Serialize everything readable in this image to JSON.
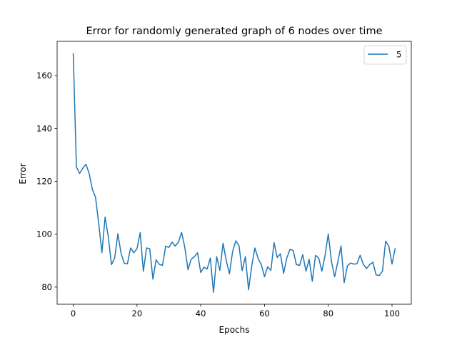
{
  "chart_data": {
    "type": "line",
    "title": "Error for randomly generated graph of 6 nodes over time",
    "xlabel": "Epochs",
    "ylabel": "Error",
    "xlim": [
      -5.05,
      106.05
    ],
    "ylim": [
      73.5,
      173.0
    ],
    "xticks": [
      0,
      20,
      40,
      60,
      80,
      100
    ],
    "yticks": [
      80,
      100,
      120,
      140,
      160
    ],
    "grid": false,
    "legend": {
      "position": "top-right",
      "entries": [
        "5"
      ]
    },
    "series": [
      {
        "name": "5",
        "color": "#1f77b4",
        "x": [
          0,
          1,
          2,
          3,
          4,
          5,
          6,
          7,
          8,
          9,
          10,
          11,
          12,
          13,
          14,
          15,
          16,
          17,
          18,
          19,
          20,
          21,
          22,
          23,
          24,
          25,
          26,
          27,
          28,
          29,
          30,
          31,
          32,
          33,
          34,
          35,
          36,
          37,
          38,
          39,
          40,
          41,
          42,
          43,
          44,
          45,
          46,
          47,
          48,
          49,
          50,
          51,
          52,
          53,
          54,
          55,
          56,
          57,
          58,
          59,
          60,
          61,
          62,
          63,
          64,
          65,
          66,
          67,
          68,
          69,
          70,
          71,
          72,
          73,
          74,
          75,
          76,
          77,
          78,
          79,
          80,
          81,
          82,
          83,
          84,
          85,
          86,
          87,
          88,
          89,
          90,
          91,
          92,
          93,
          94,
          95,
          96,
          97,
          98,
          99,
          100,
          101
        ],
        "y": [
          168.5,
          125.5,
          123,
          125,
          126.5,
          123,
          117,
          114,
          104,
          93,
          106.5,
          99,
          88.5,
          91,
          100.2,
          92.8,
          89,
          88.8,
          94.8,
          93,
          94.5,
          100.6,
          86,
          94.8,
          94.5,
          83,
          90.3,
          88.6,
          88.2,
          95.5,
          95,
          97,
          95.5,
          97,
          100.7,
          95,
          86.6,
          90.5,
          91.5,
          93,
          85.5,
          87.5,
          86.8,
          91,
          78,
          91.5,
          86.3,
          96.6,
          90,
          85,
          93.5,
          97.5,
          95.7,
          86.2,
          91.5,
          79,
          88,
          94.8,
          90.8,
          88.5,
          83.9,
          87.7,
          86.3,
          96.8,
          91.2,
          92.6,
          85.2,
          91,
          94.3,
          93.8,
          88.5,
          88.2,
          92.3,
          86,
          90.5,
          82.2,
          92,
          91,
          86,
          92,
          100.1,
          89.7,
          83.9,
          89.5,
          95.6,
          81.7,
          88,
          89.1,
          88.7,
          88.8,
          92,
          88.6,
          87,
          88.5,
          89.4,
          84.6,
          84.4,
          86,
          97.4,
          95.5,
          88.7,
          94.7
        ]
      }
    ]
  }
}
